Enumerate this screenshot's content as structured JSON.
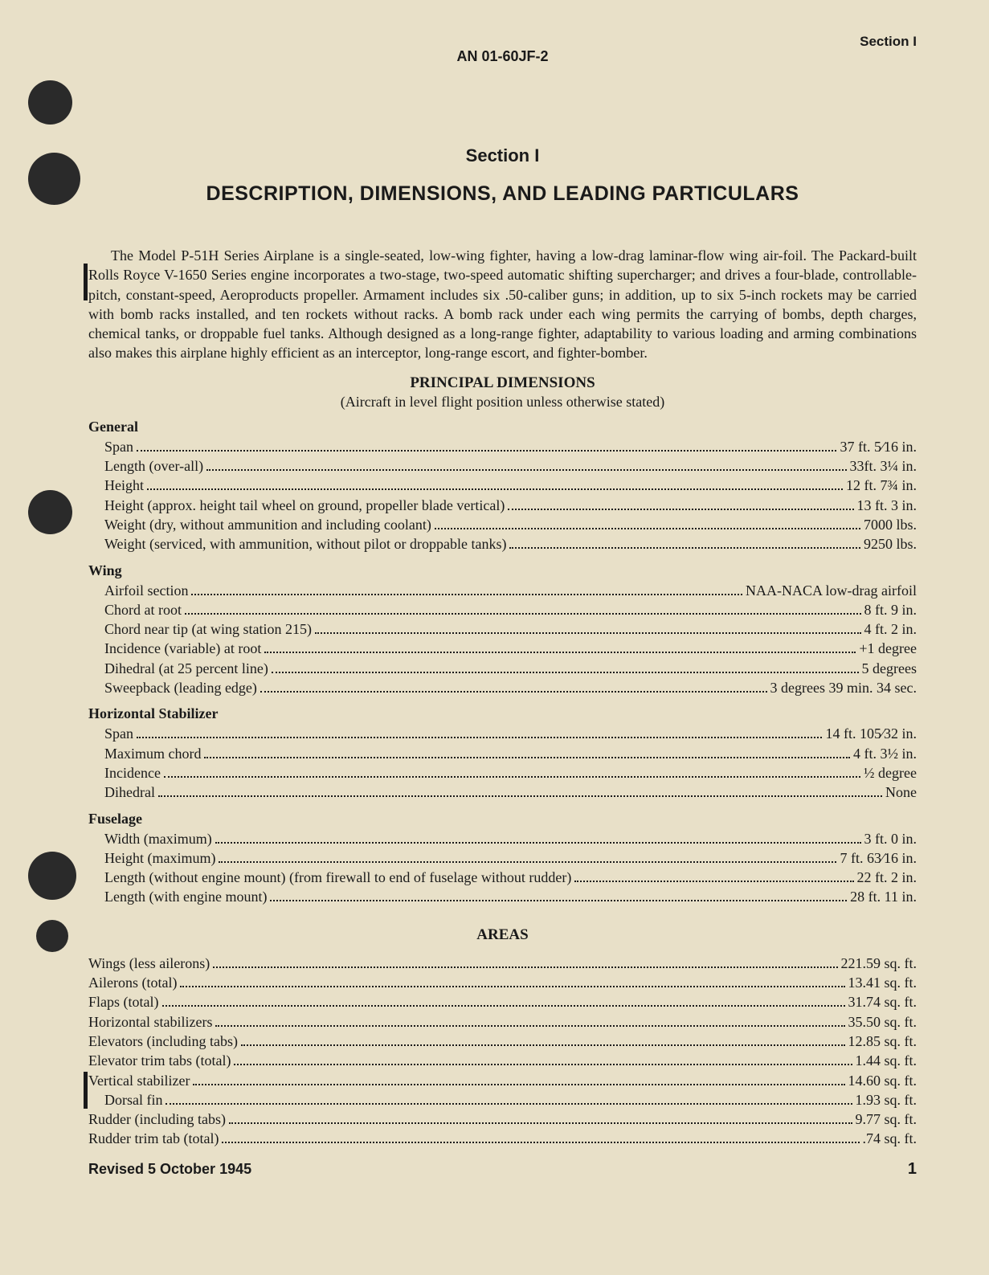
{
  "doc_number": "AN 01-60JF-2",
  "section_header": "Section I",
  "section_label": "Section I",
  "main_title": "DESCRIPTION, DIMENSIONS, AND LEADING PARTICULARS",
  "paragraph": "The Model P-51H Series Airplane is a single-seated, low-wing fighter, having a low-drag laminar-flow wing air-foil. The Packard-built Rolls Royce V-1650 Series engine incorporates a two-stage, two-speed automatic shifting supercharger; and drives a four-blade, controllable-pitch, constant-speed, Aeroproducts propeller. Armament includes six .50-caliber guns; in addition, up to six 5-inch rockets may be carried with bomb racks installed, and ten rockets without racks. A bomb rack under each wing permits the carrying of bombs, depth charges, chemical tanks, or droppable fuel tanks. Although designed as a long-range fighter, adaptability to various loading and arming combinations also makes this airplane highly efficient as an interceptor, long-range escort, and fighter-bomber.",
  "principal_dimensions_title": "PRINCIPAL DIMENSIONS",
  "principal_dimensions_note": "(Aircraft in level flight position unless otherwise stated)",
  "groups": [
    {
      "title": "General",
      "items": [
        {
          "label": "Span",
          "value": "37 ft. 5⁄16 in."
        },
        {
          "label": "Length (over-all)",
          "value": "33ft. 3¼ in."
        },
        {
          "label": "Height",
          "value": "12 ft. 7¾ in."
        },
        {
          "label": "Height (approx. height tail wheel on ground, propeller blade vertical)",
          "value": "13 ft. 3 in."
        },
        {
          "label": "Weight (dry, without ammunition and including coolant)",
          "value": "7000 lbs."
        },
        {
          "label": "Weight (serviced, with ammunition, without pilot or droppable tanks)",
          "value": "9250 lbs."
        }
      ]
    },
    {
      "title": "Wing",
      "items": [
        {
          "label": "Airfoil section",
          "value": "NAA-NACA low-drag airfoil"
        },
        {
          "label": "Chord at root",
          "value": "8 ft. 9 in."
        },
        {
          "label": "Chord near tip (at wing station 215)",
          "value": "4 ft. 2 in."
        },
        {
          "label": "Incidence (variable) at root",
          "value": "+1 degree"
        },
        {
          "label": "Dihedral (at 25 percent line)",
          "value": "5 degrees"
        },
        {
          "label": "Sweepback (leading edge)",
          "value": "3 degrees 39 min. 34 sec."
        }
      ]
    },
    {
      "title": "Horizontal Stabilizer",
      "items": [
        {
          "label": "Span",
          "value": "14 ft. 105⁄32 in."
        },
        {
          "label": "Maximum chord",
          "value": "4 ft. 3½ in."
        },
        {
          "label": "Incidence",
          "value": "½ degree"
        },
        {
          "label": "Dihedral",
          "value": "None"
        }
      ]
    },
    {
      "title": "Fuselage",
      "items": [
        {
          "label": "Width (maximum)",
          "value": "3 ft. 0 in."
        },
        {
          "label": "Height (maximum)",
          "value": "7 ft. 63⁄16 in."
        },
        {
          "label": "Length (without engine mount) (from firewall to end of fuselage without rudder)",
          "value": "22 ft. 2 in."
        },
        {
          "label": "Length (with engine mount)",
          "value": "28 ft. 11 in."
        }
      ]
    }
  ],
  "areas_title": "AREAS",
  "areas": [
    {
      "label": "Wings (less ailerons)",
      "value": "221.59 sq. ft."
    },
    {
      "label": "Ailerons (total)",
      "value": "13.41 sq. ft."
    },
    {
      "label": "Flaps (total)",
      "value": "31.74 sq. ft."
    },
    {
      "label": "Horizontal stabilizers",
      "value": "35.50 sq. ft."
    },
    {
      "label": "Elevators (including tabs)",
      "value": "12.85 sq. ft."
    },
    {
      "label": "Elevator trim tabs (total)",
      "value": "1.44 sq. ft."
    },
    {
      "label": "Vertical stabilizer",
      "value": "14.60 sq. ft."
    },
    {
      "label": "Dorsal fin",
      "value": "1.93 sq. ft.",
      "indent": true
    },
    {
      "label": "Rudder (including tabs)",
      "value": "9.77 sq. ft."
    },
    {
      "label": "Rudder trim tab (total)",
      "value": ".74 sq. ft."
    }
  ],
  "revised": "Revised 5 October 1945",
  "page_number": "1"
}
